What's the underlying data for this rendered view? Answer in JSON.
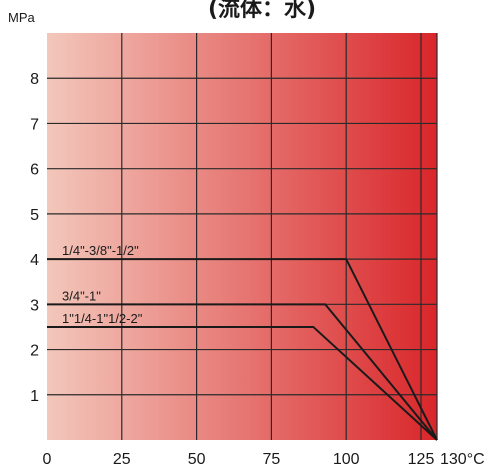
{
  "chart_data": {
    "type": "line",
    "title": "(流体：水)",
    "ylabel": "MPa",
    "x_unit": "°C",
    "xlim": [
      0,
      130
    ],
    "ylim": [
      0,
      9
    ],
    "x_ticks": [
      0,
      25,
      50,
      75,
      100,
      125,
      130
    ],
    "x_tick_labels": [
      "0",
      "25",
      "50",
      "75",
      "100",
      "125",
      "130°C"
    ],
    "y_ticks": [
      1,
      2,
      3,
      4,
      5,
      6,
      7,
      8
    ],
    "y_tick_labels": [
      "1",
      "2",
      "3",
      "4",
      "5",
      "6",
      "7",
      "8"
    ],
    "grid": true,
    "background": {
      "from": "#f3c7bb",
      "to": "#d9262a"
    },
    "series": [
      {
        "name": "1/4\"-3/8\"-1/2\"",
        "x": [
          0,
          100,
          130
        ],
        "y": [
          4,
          4,
          0
        ]
      },
      {
        "name": "3/4\"-1\"",
        "x": [
          0,
          93,
          130
        ],
        "y": [
          3,
          3,
          0
        ]
      },
      {
        "name": "1\"1/4-1\"1/2-2\"",
        "x": [
          0,
          89,
          130
        ],
        "y": [
          2.5,
          2.5,
          0
        ]
      }
    ]
  }
}
